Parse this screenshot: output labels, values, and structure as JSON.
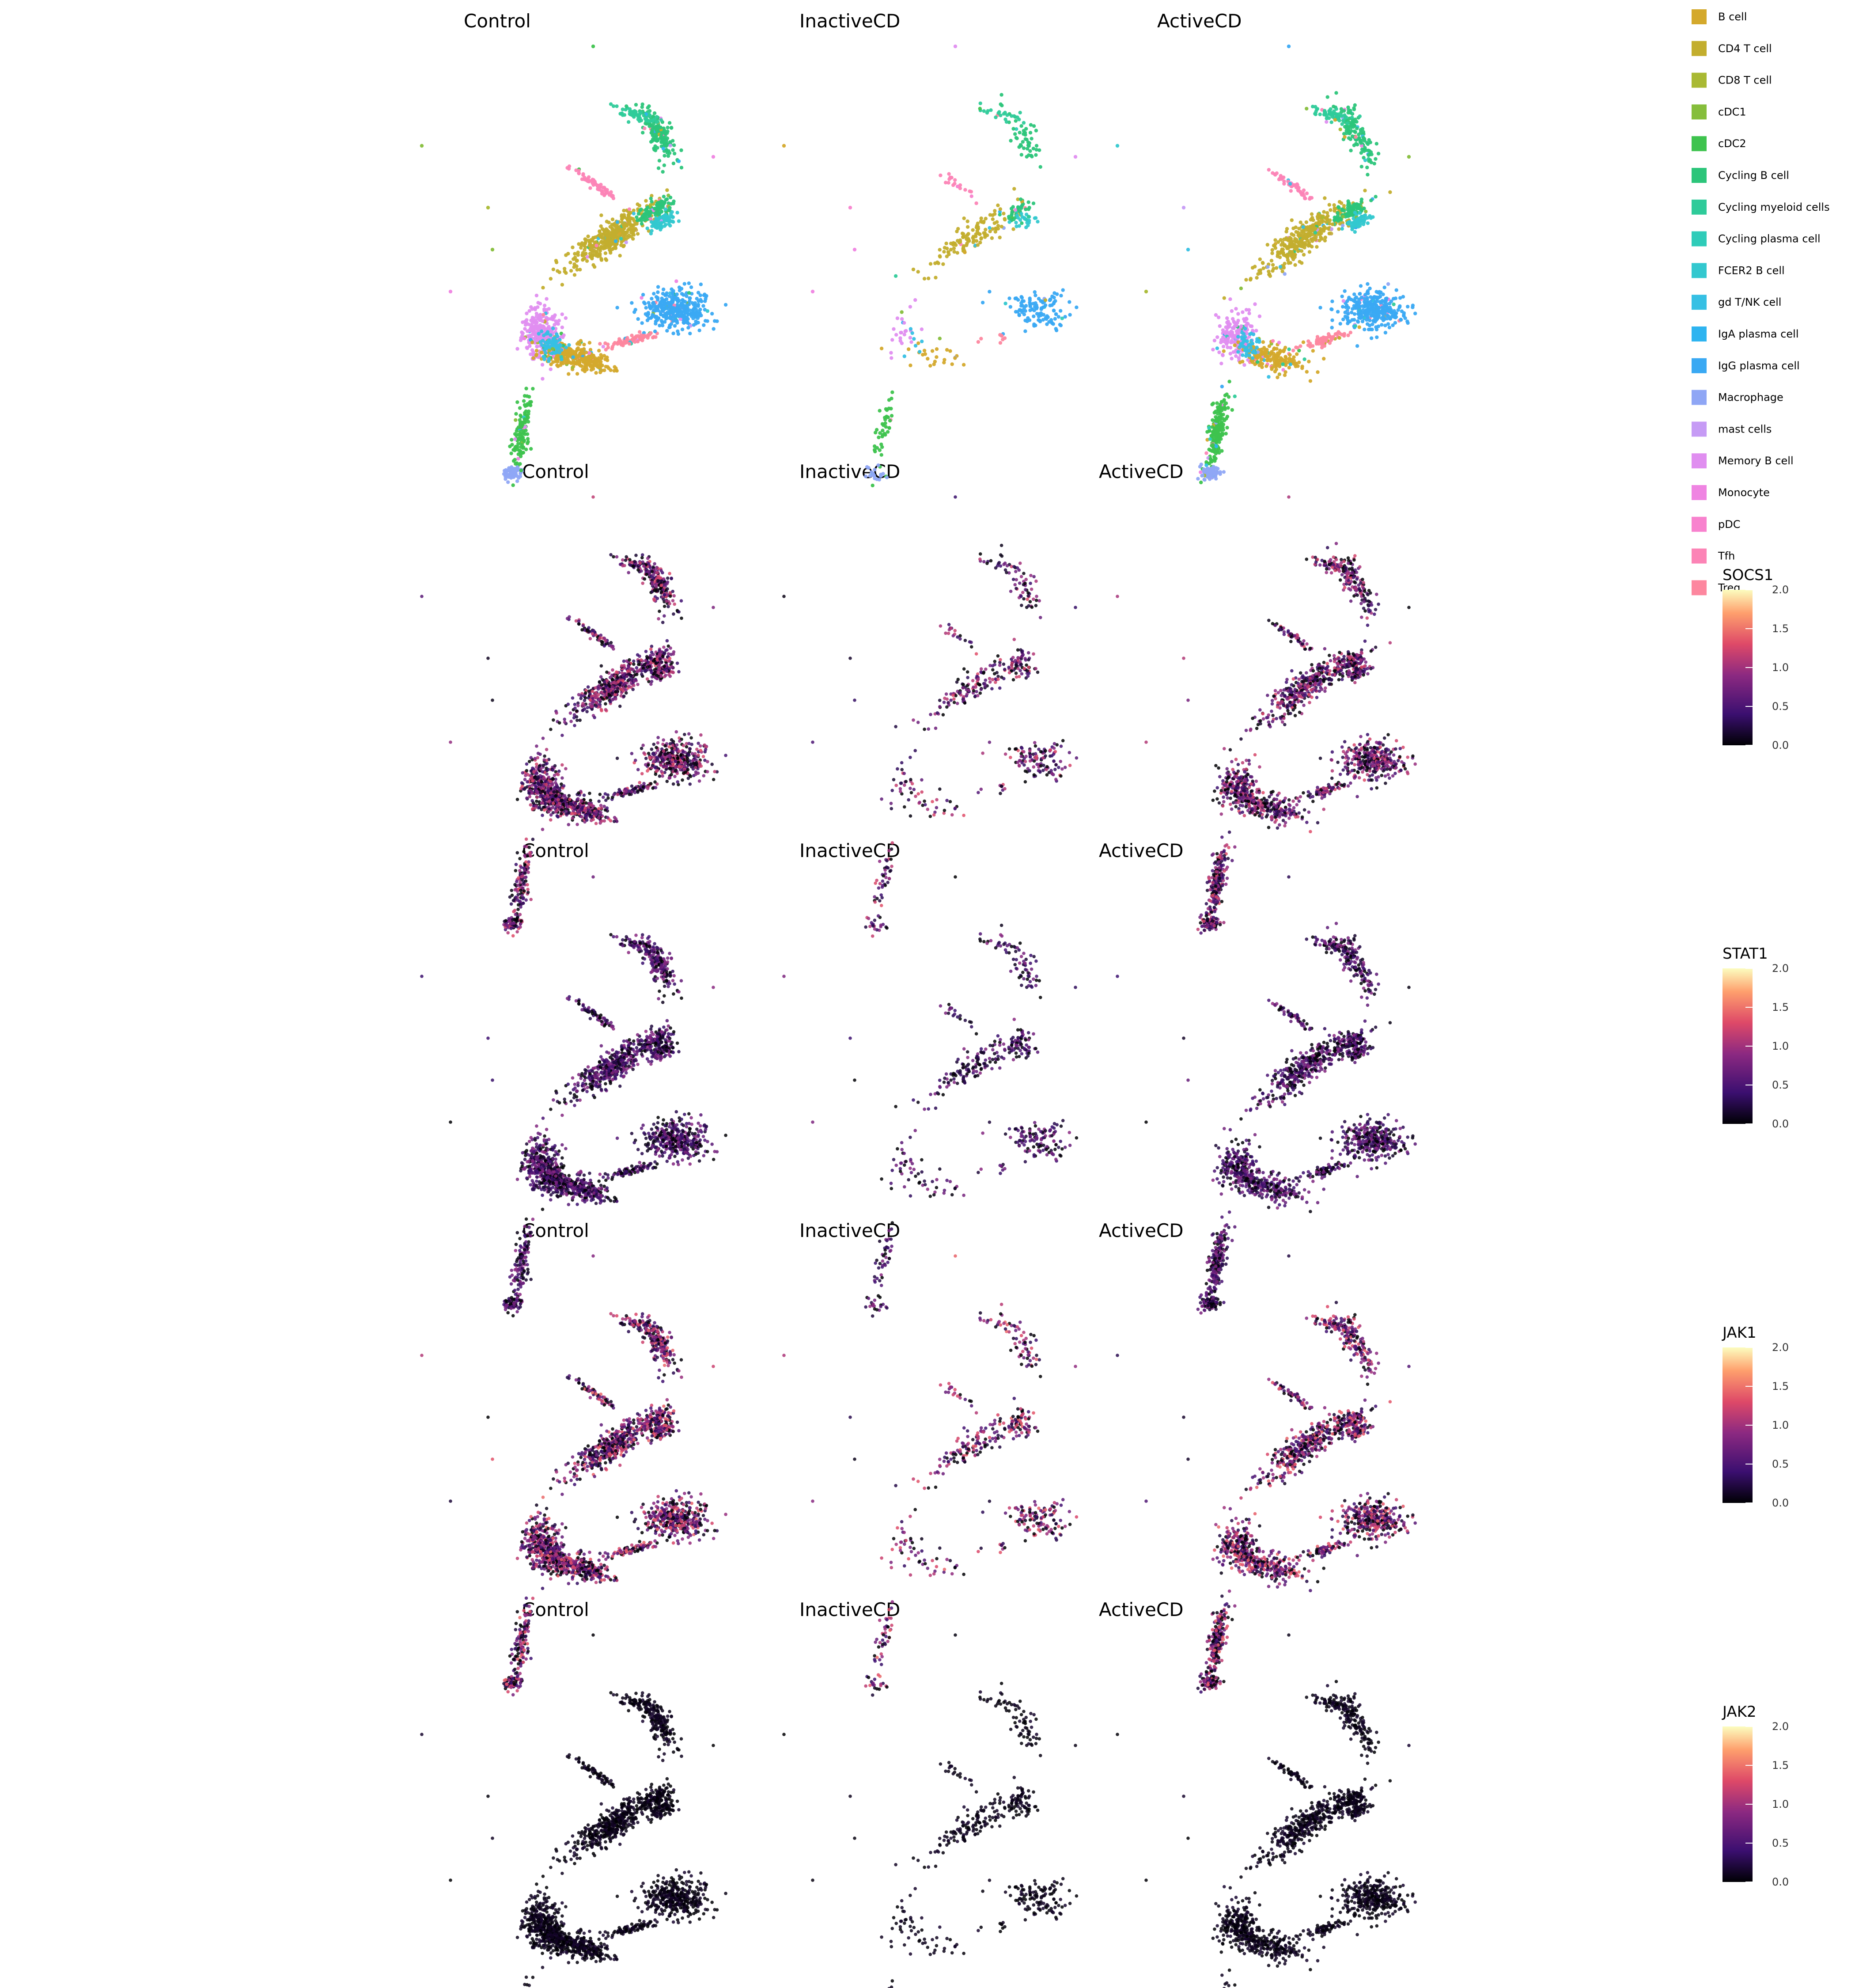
{
  "conditions": [
    "Control",
    "InactiveCD",
    "ActiveCD"
  ],
  "genes": [
    "SOCS1",
    "STAT1",
    "JAK1",
    "JAK2"
  ],
  "colorbar_ticks": [
    "2.0",
    "1.5",
    "1.0",
    "0.5",
    "0.0"
  ],
  "legend": [
    {
      "label": "B cell",
      "color": "#D4A92C"
    },
    {
      "label": "CD4 T cell",
      "color": "#C3AE2E"
    },
    {
      "label": "CD8 T cell",
      "color": "#A9B933"
    },
    {
      "label": "cDC1",
      "color": "#86BE3C"
    },
    {
      "label": "cDC2",
      "color": "#3EC34E"
    },
    {
      "label": "Cycling B cell",
      "color": "#2CC57A"
    },
    {
      "label": "Cycling myeloid cells",
      "color": "#2FCB9A"
    },
    {
      "label": "Cycling plasma cell",
      "color": "#2FCCB9"
    },
    {
      "label": "FCER2 B cell",
      "color": "#33C8CF"
    },
    {
      "label": "gd T/NK cell",
      "color": "#36C0E4"
    },
    {
      "label": "IgA plasma cell",
      "color": "#2EB4F0"
    },
    {
      "label": "IgG plasma cell",
      "color": "#3AA9F3"
    },
    {
      "label": "Macrophage",
      "color": "#8FA6F5"
    },
    {
      "label": "mast cells",
      "color": "#C69BF5"
    },
    {
      "label": "Memory B cell",
      "color": "#E08EF0"
    },
    {
      "label": "Monocyte",
      "color": "#EF84E2"
    },
    {
      "label": "pDC",
      "color": "#F882CE"
    },
    {
      "label": "Tfh",
      "color": "#FC84B6"
    },
    {
      "label": "Treg",
      "color": "#FD879F"
    }
  ],
  "chart_data": [
    {
      "type": "scatter",
      "row": "cell types",
      "panels": [
        "Control",
        "InactiveCD",
        "ActiveCD"
      ],
      "color_by": "cell type"
    },
    {
      "type": "scatter",
      "row": "SOCS1",
      "panels": [
        "Control",
        "InactiveCD",
        "ActiveCD"
      ],
      "color_by": "expression",
      "colorbar": {
        "title": "SOCS1",
        "range": [
          0,
          2
        ],
        "ticks": [
          0,
          0.5,
          1,
          1.5,
          2
        ]
      }
    },
    {
      "type": "scatter",
      "row": "STAT1",
      "panels": [
        "Control",
        "InactiveCD",
        "ActiveCD"
      ],
      "color_by": "expression",
      "colorbar": {
        "title": "STAT1",
        "range": [
          0,
          2
        ],
        "ticks": [
          0,
          0.5,
          1,
          1.5,
          2
        ]
      }
    },
    {
      "type": "scatter",
      "row": "JAK1",
      "panels": [
        "Control",
        "InactiveCD",
        "ActiveCD"
      ],
      "color_by": "expression",
      "colorbar": {
        "title": "JAK1",
        "range": [
          0,
          2
        ],
        "ticks": [
          0,
          0.5,
          1,
          1.5,
          2
        ]
      }
    },
    {
      "type": "scatter",
      "row": "JAK2",
      "panels": [
        "Control",
        "InactiveCD",
        "ActiveCD"
      ],
      "color_by": "expression",
      "colorbar": {
        "title": "JAK2",
        "range": [
          0,
          2
        ],
        "ticks": [
          0,
          0.5,
          1,
          1.5,
          2
        ]
      }
    }
  ]
}
